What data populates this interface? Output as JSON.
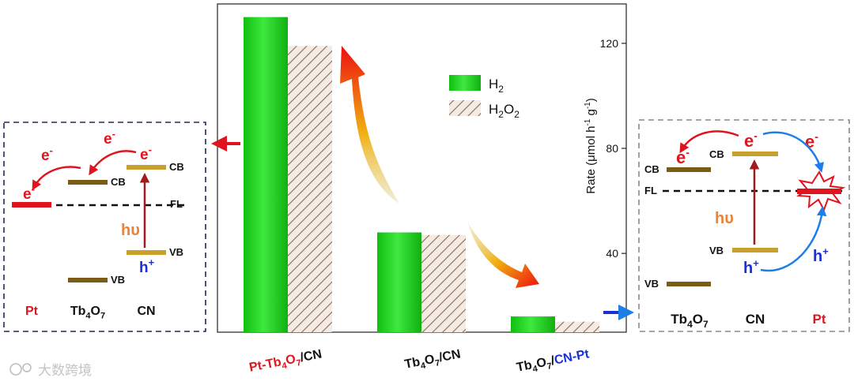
{
  "chart_data": {
    "type": "bar",
    "categories": [
      {
        "parts": [
          {
            "t": "Pt-Tb",
            "c": "#e0141e"
          },
          {
            "t": "4",
            "c": "#e0141e",
            "sub": true
          },
          {
            "t": "O",
            "c": "#e0141e"
          },
          {
            "t": "7",
            "c": "#e0141e",
            "sub": true
          },
          {
            "t": "/CN",
            "c": "#111111"
          }
        ]
      },
      {
        "parts": [
          {
            "t": "Tb",
            "c": "#111111"
          },
          {
            "t": "4",
            "c": "#111111",
            "sub": true
          },
          {
            "t": "O",
            "c": "#111111"
          },
          {
            "t": "7",
            "c": "#111111",
            "sub": true
          },
          {
            "t": "/CN",
            "c": "#111111"
          }
        ]
      },
      {
        "parts": [
          {
            "t": "Tb",
            "c": "#111111"
          },
          {
            "t": "4",
            "c": "#111111",
            "sub": true
          },
          {
            "t": "O",
            "c": "#111111"
          },
          {
            "t": "7",
            "c": "#111111",
            "sub": true
          },
          {
            "t": "/",
            "c": "#111111"
          },
          {
            "t": "CN-Pt",
            "c": "#1a2fd8"
          }
        ]
      }
    ],
    "series": [
      {
        "name": "H2",
        "legend_parts": [
          {
            "t": "H"
          },
          {
            "t": "2",
            "sub": true
          }
        ],
        "values": [
          130,
          48,
          16
        ],
        "color": "#22cc22"
      },
      {
        "name": "H2O2",
        "legend_parts": [
          {
            "t": "H"
          },
          {
            "t": "2",
            "sub": true
          },
          {
            "t": "O"
          },
          {
            "t": "2",
            "sub": true
          }
        ],
        "values": [
          119,
          47,
          14
        ],
        "color": "#8a6a55"
      }
    ],
    "ylim": [
      10,
      135
    ],
    "yticks": [
      40,
      80,
      120
    ],
    "ylabel_parts": [
      {
        "t": "Rate (μmol h"
      },
      {
        "t": "-1",
        "sup": true
      },
      {
        "t": " g"
      },
      {
        "t": "-1",
        "sup": true
      },
      {
        "t": ")"
      }
    ],
    "legend_position": "top-right"
  },
  "left_diagram": {
    "labels": {
      "pt": "Pt",
      "tbo": [
        {
          "t": "Tb"
        },
        {
          "t": "4",
          "sub": true
        },
        {
          "t": "O"
        },
        {
          "t": "7",
          "sub": true
        }
      ],
      "cn": "CN",
      "cb": "CB",
      "vb": "VB",
      "fl": "FL",
      "hv": "hυ",
      "h": "h",
      "plus": "+",
      "e": "e",
      "minus": "-"
    }
  },
  "right_diagram": {
    "labels": {
      "tbo": [
        {
          "t": "Tb"
        },
        {
          "t": "4",
          "sub": true
        },
        {
          "t": "O"
        },
        {
          "t": "7",
          "sub": true
        }
      ],
      "cn": "CN",
      "pt": "Pt",
      "cb": "CB",
      "vb": "VB",
      "fl": "FL",
      "hv": "hυ",
      "h": "h",
      "plus": "+",
      "e": "e",
      "minus": "-"
    }
  },
  "watermark": "大数跨境",
  "colors": {
    "red": "#e0141e",
    "blue": "#1a2fd8",
    "gold": "#c8a02a",
    "brown": "#7a5c14",
    "orange": "#e8833a",
    "darkred": "#a01c1c",
    "skyblue": "#1e7ee8",
    "navy": "#1f2d55",
    "gray": "#888888"
  }
}
